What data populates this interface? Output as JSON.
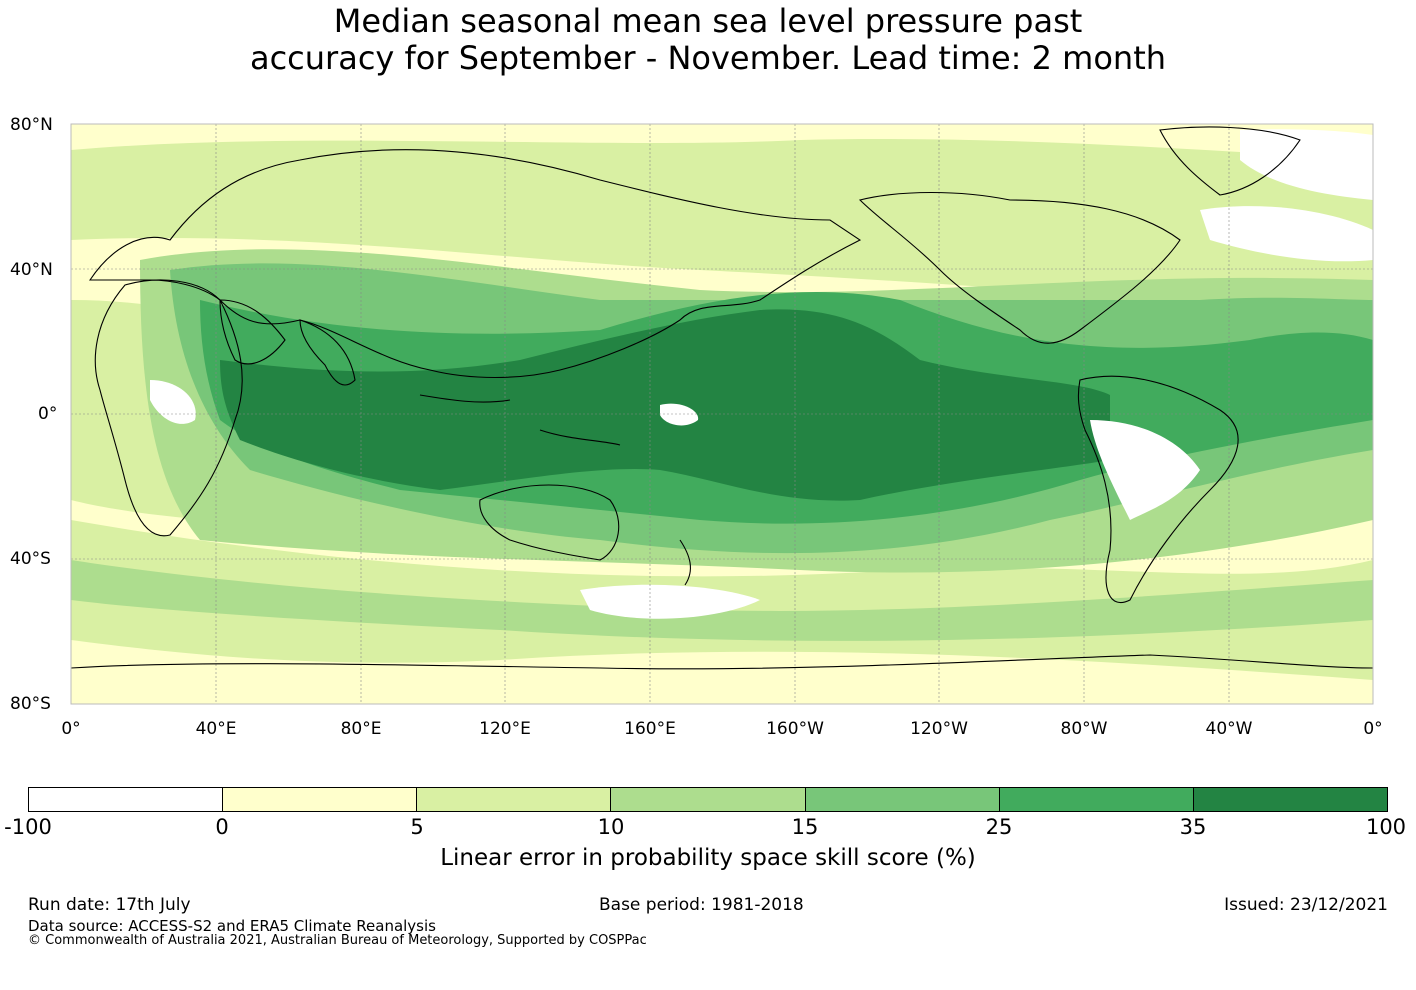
{
  "title_line1": "Median seasonal mean sea level pressure past",
  "title_line2": "accuracy for September - November. Lead time: 2 month",
  "map": {
    "lat_labels": [
      "80°N",
      "40°N",
      "0°",
      "40°S",
      "80°S"
    ],
    "lon_labels": [
      "0°",
      "40°E",
      "80°E",
      "120°E",
      "160°E",
      "160°W",
      "120°W",
      "80°W",
      "40°W",
      "0°"
    ],
    "colors": {
      "band_neg": "#ffffff",
      "band_0_5": "#ffffcc",
      "band_5_10": "#d9f0a3",
      "band_10_15": "#addd8e",
      "band_15_25": "#78c679",
      "band_25_35": "#41ab5d",
      "band_35_100": "#238443"
    }
  },
  "colorbar": {
    "colors": [
      "#ffffff",
      "#ffffcc",
      "#d9f0a3",
      "#addd8e",
      "#78c679",
      "#41ab5d",
      "#238443"
    ],
    "ticks": [
      "-100",
      "0",
      "5",
      "10",
      "15",
      "25",
      "35",
      "100"
    ],
    "label": "Linear error in probability space skill score (%)"
  },
  "footer": {
    "run_date": "Run date: 17th July",
    "base_period": "Base period: 1981-2018",
    "issued": "Issued: 23/12/2021",
    "data_source": "Data source: ACCESS-S2 and ERA5 Climate Reanalysis",
    "copyright": "© Commonwealth of Australia 2021, Australian Bureau of Meteorology, Supported by COSPPac"
  }
}
